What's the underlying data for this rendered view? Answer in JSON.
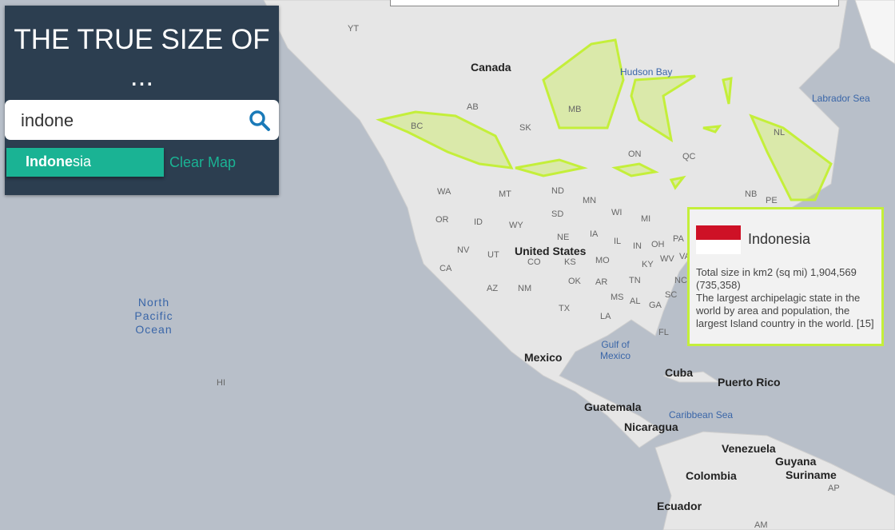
{
  "app": {
    "title": "THE TRUE SIZE OF ...",
    "title_line2": "..."
  },
  "search": {
    "value": "indone",
    "icon": "search-icon"
  },
  "suggestion": {
    "match": "Indone",
    "rest": "sia"
  },
  "clear_label": "Clear Map",
  "info": {
    "country": "Indonesia",
    "flag_colors": [
      "#ce1126",
      "#ffffff"
    ],
    "size_text": "Total size in km2 (sq mi) 1,904,569 (735,358)",
    "description": "The largest archipelagic state in the world by area and population, the largest Island country in the world. [15]"
  },
  "overlay_color": "#c4ef3a",
  "map": {
    "countries": [
      "Canada",
      "United States",
      "Mexico",
      "Cuba",
      "Puerto Rico",
      "Guatemala",
      "Nicaragua",
      "Venezuela",
      "Guyana",
      "Suriname",
      "Colombia",
      "Ecuador"
    ],
    "seas": [
      "Hudson Bay",
      "Labrador Sea",
      "Gulf of Mexico",
      "Caribbean Sea",
      "North Pacific Ocean"
    ],
    "regions": [
      "YT",
      "BC",
      "AB",
      "SK",
      "MB",
      "ON",
      "QC",
      "NL",
      "NB",
      "PE",
      "WA",
      "OR",
      "ID",
      "MT",
      "ND",
      "MN",
      "WI",
      "MI",
      "SD",
      "WY",
      "NE",
      "IA",
      "IL",
      "IN",
      "OH",
      "PA",
      "NV",
      "UT",
      "CO",
      "KS",
      "MO",
      "KY",
      "WV",
      "VA",
      "CA",
      "AZ",
      "NM",
      "OK",
      "AR",
      "TN",
      "NC",
      "TX",
      "MS",
      "AL",
      "GA",
      "SC",
      "LA",
      "FL",
      "HI",
      "AP",
      "AM"
    ]
  }
}
